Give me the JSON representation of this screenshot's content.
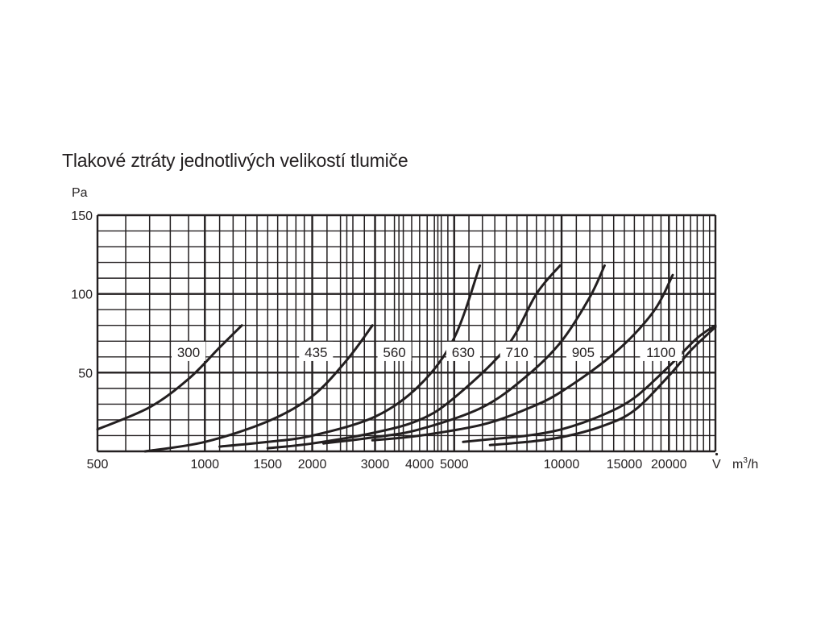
{
  "chart_data": {
    "type": "line",
    "title": "Tlakové ztráty jednotlivých velikostí tlumiče",
    "ylabel": "Pa",
    "xlabel_symbol": "V",
    "xlabel_unit_base": "m",
    "xlabel_unit_sup": "3",
    "xlabel_unit_tail": "/h",
    "x_scale": "log",
    "xlim": [
      500,
      27000
    ],
    "ylim": [
      0,
      150
    ],
    "grid": true,
    "x_ticks": [
      {
        "value": 500,
        "label": "500"
      },
      {
        "value": 1000,
        "label": "1000"
      },
      {
        "value": 1500,
        "label": "1500"
      },
      {
        "value": 2000,
        "label": "2000"
      },
      {
        "value": 3000,
        "label": "3000"
      },
      {
        "value": 4000,
        "label": "4000"
      },
      {
        "value": 5000,
        "label": "5000"
      },
      {
        "value": 10000,
        "label": "10000"
      },
      {
        "value": 15000,
        "label": "15000"
      },
      {
        "value": 20000,
        "label": "20000"
      }
    ],
    "y_ticks": [
      {
        "value": 50,
        "label": "50"
      },
      {
        "value": 100,
        "label": "100"
      },
      {
        "value": 150,
        "label": "150"
      }
    ],
    "series": [
      {
        "name": "300",
        "points": [
          [
            500,
            14
          ],
          [
            700,
            28
          ],
          [
            900,
            46
          ],
          [
            1100,
            66
          ],
          [
            1270,
            80
          ]
        ],
        "label_at": [
          900,
          63
        ]
      },
      {
        "name": "435",
        "points": [
          [
            680,
            0
          ],
          [
            1000,
            6
          ],
          [
            1500,
            19
          ],
          [
            2000,
            35
          ],
          [
            2500,
            58
          ],
          [
            2950,
            80
          ]
        ],
        "label_at": [
          2050,
          63
        ]
      },
      {
        "name": "560",
        "points": [
          [
            1100,
            3
          ],
          [
            1500,
            6
          ],
          [
            2000,
            10
          ],
          [
            3000,
            22
          ],
          [
            4000,
            42
          ],
          [
            5000,
            72
          ],
          [
            5900,
            118
          ]
        ],
        "label_at": [
          3400,
          63
        ]
      },
      {
        "name": "630",
        "points": [
          [
            1500,
            2
          ],
          [
            2000,
            5
          ],
          [
            3000,
            12
          ],
          [
            4000,
            20
          ],
          [
            5000,
            34
          ],
          [
            7000,
            66
          ],
          [
            8500,
            100
          ],
          [
            9900,
            118
          ]
        ],
        "label_at": [
          5300,
          63
        ]
      },
      {
        "name": "710",
        "points": [
          [
            2150,
            5
          ],
          [
            3000,
            9
          ],
          [
            4000,
            14
          ],
          [
            6000,
            28
          ],
          [
            8000,
            48
          ],
          [
            10000,
            70
          ],
          [
            12000,
            98
          ],
          [
            13200,
            118
          ]
        ],
        "label_at": [
          7500,
          63
        ]
      },
      {
        "name": "905",
        "points": [
          [
            2950,
            7
          ],
          [
            4000,
            10
          ],
          [
            6000,
            17
          ],
          [
            8000,
            27
          ],
          [
            10000,
            38
          ],
          [
            14000,
            62
          ],
          [
            18000,
            88
          ],
          [
            20500,
            112
          ]
        ],
        "label_at": [
          11500,
          63
        ]
      },
      {
        "name": "1100",
        "points": [
          [
            5300,
            6
          ],
          [
            6500,
            8
          ],
          [
            8000,
            10
          ],
          [
            10000,
            14
          ],
          [
            13000,
            23
          ],
          [
            16000,
            34
          ],
          [
            20000,
            54
          ],
          [
            24000,
            72
          ],
          [
            27000,
            80
          ]
        ],
        "label_at": [
          19000,
          63
        ]
      },
      {
        "name": "",
        "points": [
          [
            6300,
            4
          ],
          [
            8000,
            6
          ],
          [
            10000,
            9
          ],
          [
            13000,
            16
          ],
          [
            16000,
            26
          ],
          [
            20000,
            48
          ],
          [
            23000,
            64
          ],
          [
            27000,
            79
          ]
        ]
      }
    ]
  }
}
